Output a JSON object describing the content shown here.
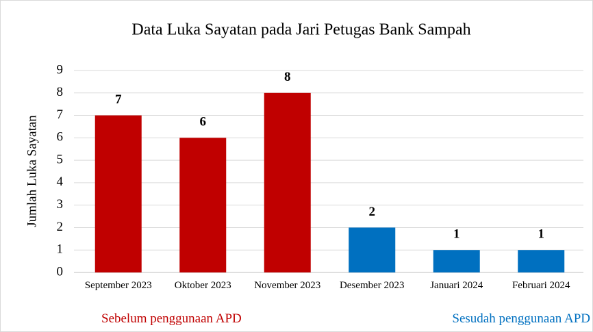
{
  "chart_data": {
    "type": "bar",
    "title": "Data Luka Sayatan pada Jari Petugas Bank Sampah",
    "y_label": "Jumlah Luka Sayatan",
    "categories": [
      "September 2023",
      "Oktober 2023",
      "November 2023",
      "Desember 2023",
      "Januari 2024",
      "Februari 2024"
    ],
    "values": [
      7,
      6,
      8,
      2,
      1,
      1
    ],
    "colors": [
      "#c00000",
      "#c00000",
      "#c00000",
      "#0070c0",
      "#0070c0",
      "#0070c0"
    ],
    "ylim": [
      0,
      9
    ],
    "yticks": [
      0,
      1,
      2,
      3,
      4,
      5,
      6,
      7,
      8,
      9
    ],
    "grid": true,
    "annotations": [
      {
        "text": "Sebelum penggunaan APD",
        "color": "#c00000"
      },
      {
        "text": "Sesudah penggunaan APD",
        "color": "#0070c0"
      }
    ]
  }
}
